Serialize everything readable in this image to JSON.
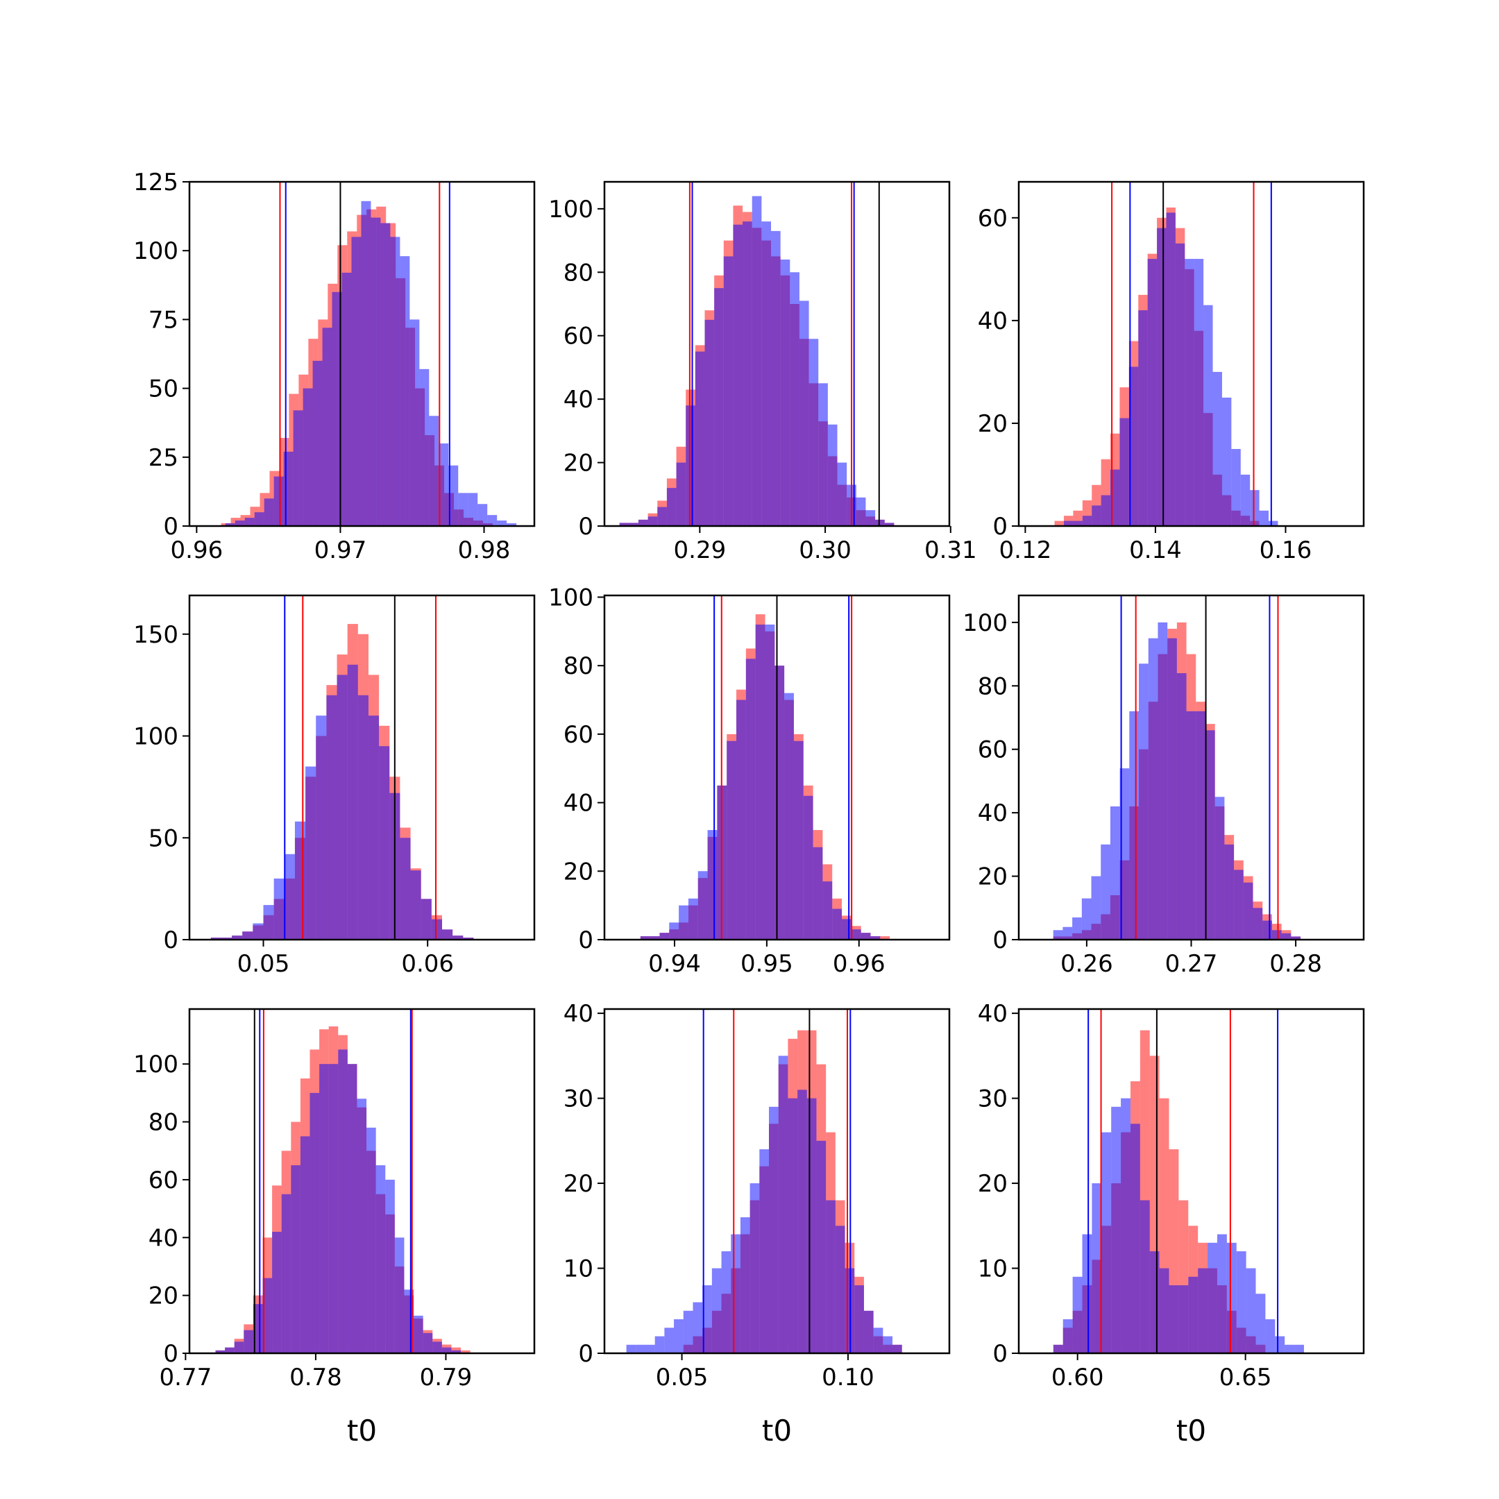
{
  "colors": {
    "red": "#ff0000",
    "blue": "#0000ff",
    "black": "#000000",
    "overlap": "#7f3fbf"
  },
  "chart_data": [
    {
      "type": "histogram",
      "xlabel": "",
      "xlim": [
        0.9595,
        0.9835
      ],
      "ylim": [
        0,
        125
      ],
      "xticks": [
        0.96,
        0.97,
        0.98
      ],
      "xtick_labels": [
        "0.96",
        "0.97",
        "0.98"
      ],
      "yticks": [
        0,
        25,
        50,
        75,
        100,
        125
      ],
      "ytick_labels": [
        "0",
        "25",
        "50",
        "75",
        "100",
        "125"
      ],
      "series": [
        {
          "color": "red",
          "x_start": 0.9617,
          "bin_width": 0.000675,
          "counts": [
            1,
            3,
            4,
            7,
            12,
            20,
            32,
            48,
            55,
            68,
            75,
            88,
            102,
            107,
            113,
            115,
            116,
            110,
            90,
            72,
            50,
            33,
            22,
            12,
            6,
            3,
            2,
            1
          ]
        },
        {
          "color": "blue",
          "x_start": 0.962,
          "bin_width": 0.000675,
          "counts": [
            1,
            2,
            3,
            5,
            10,
            18,
            27,
            42,
            50,
            60,
            72,
            85,
            92,
            105,
            118,
            112,
            110,
            105,
            98,
            75,
            57,
            40,
            30,
            22,
            12,
            12,
            8,
            4,
            2,
            1
          ]
        }
      ],
      "vlines": [
        {
          "color": "red",
          "x": 0.9658
        },
        {
          "color": "blue",
          "x": 0.9662
        },
        {
          "color": "black",
          "x": 0.97
        },
        {
          "color": "red",
          "x": 0.9769
        },
        {
          "color": "blue",
          "x": 0.9776
        }
      ]
    },
    {
      "type": "histogram",
      "xlabel": "",
      "xlim": [
        0.2824,
        0.3099
      ],
      "ylim": [
        0,
        108.5
      ],
      "xticks": [
        0.29,
        0.3,
        0.31
      ],
      "xtick_labels": [
        "0.29",
        "0.30",
        "0.31"
      ],
      "yticks": [
        0,
        20,
        40,
        60,
        80,
        100
      ],
      "ytick_labels": [
        "0",
        "20",
        "40",
        "60",
        "80",
        "100"
      ],
      "series": [
        {
          "color": "red",
          "x_start": 0.2836,
          "bin_width": 0.000755,
          "counts": [
            1,
            1,
            2,
            4,
            8,
            15,
            25,
            43,
            57,
            68,
            79,
            90,
            101,
            99,
            94,
            90,
            85,
            79,
            70,
            59,
            45,
            33,
            22,
            13,
            9,
            5,
            3,
            2,
            1
          ]
        },
        {
          "color": "blue",
          "x_start": 0.2836,
          "bin_width": 0.000755,
          "counts": [
            1,
            1,
            2,
            3,
            6,
            12,
            20,
            38,
            55,
            65,
            75,
            85,
            95,
            96,
            104,
            96,
            93,
            84,
            80,
            71,
            59,
            45,
            32,
            20,
            13,
            9,
            5,
            2,
            1
          ]
        }
      ],
      "vlines": [
        {
          "color": "red",
          "x": 0.2892
        },
        {
          "color": "blue",
          "x": 0.2894
        },
        {
          "color": "red",
          "x": 0.3021
        },
        {
          "color": "blue",
          "x": 0.3023
        },
        {
          "color": "black",
          "x": 0.3043
        }
      ]
    },
    {
      "type": "histogram",
      "xlabel": "",
      "xlim": [
        0.119,
        0.172
      ],
      "ylim": [
        0,
        67
      ],
      "xticks": [
        0.12,
        0.14,
        0.16
      ],
      "xtick_labels": [
        "0.12",
        "0.14",
        "0.16"
      ],
      "yticks": [
        0,
        20,
        40,
        60
      ],
      "ytick_labels": [
        "0",
        "20",
        "40",
        "60"
      ],
      "series": [
        {
          "color": "red",
          "x_start": 0.1245,
          "bin_width": 0.00143,
          "counts": [
            1,
            2,
            3,
            5,
            8,
            13,
            18,
            27,
            36,
            45,
            53,
            60,
            62,
            58,
            50,
            38,
            22,
            10,
            6,
            3,
            2,
            1
          ]
        },
        {
          "color": "blue",
          "x_start": 0.1245,
          "bin_width": 0.00143,
          "counts": [
            0,
            1,
            1,
            2,
            4,
            6,
            11,
            21,
            31,
            42,
            52,
            58,
            61,
            55,
            52,
            52,
            43,
            30,
            25,
            15,
            10,
            7,
            3,
            1
          ]
        }
      ],
      "vlines": [
        {
          "color": "red",
          "x": 0.1333
        },
        {
          "color": "blue",
          "x": 0.1361
        },
        {
          "color": "black",
          "x": 0.1412
        },
        {
          "color": "red",
          "x": 0.1551
        },
        {
          "color": "blue",
          "x": 0.1578
        }
      ]
    },
    {
      "type": "histogram",
      "xlabel": "",
      "xlim": [
        0.0455,
        0.0665
      ],
      "ylim": [
        0,
        169
      ],
      "xticks": [
        0.05,
        0.06
      ],
      "xtick_labels": [
        "0.05",
        "0.06"
      ],
      "yticks": [
        0,
        50,
        100,
        150
      ],
      "ytick_labels": [
        "0",
        "50",
        "100",
        "150"
      ],
      "series": [
        {
          "color": "red",
          "x_start": 0.0468,
          "bin_width": 0.00064,
          "counts": [
            1,
            1,
            2,
            4,
            7,
            12,
            20,
            30,
            50,
            80,
            100,
            125,
            140,
            155,
            150,
            130,
            105,
            80,
            55,
            35,
            20,
            12,
            5,
            2,
            1
          ]
        },
        {
          "color": "blue",
          "x_start": 0.0468,
          "bin_width": 0.00064,
          "counts": [
            1,
            1,
            2,
            4,
            8,
            17,
            30,
            42,
            58,
            85,
            110,
            120,
            130,
            135,
            120,
            110,
            95,
            72,
            50,
            34,
            20,
            10,
            5,
            2,
            1
          ]
        }
      ],
      "vlines": [
        {
          "color": "blue",
          "x": 0.0513
        },
        {
          "color": "red",
          "x": 0.0524
        },
        {
          "color": "black",
          "x": 0.058
        },
        {
          "color": "red",
          "x": 0.0605
        }
      ]
    },
    {
      "type": "histogram",
      "xlabel": "",
      "xlim": [
        0.9324,
        0.9698
      ],
      "ylim": [
        0,
        100.5
      ],
      "xticks": [
        0.94,
        0.95,
        0.96
      ],
      "xtick_labels": [
        "0.94",
        "0.95",
        "0.96"
      ],
      "yticks": [
        0,
        20,
        40,
        60,
        80,
        100
      ],
      "ytick_labels": [
        "0",
        "20",
        "40",
        "60",
        "80",
        "100"
      ],
      "series": [
        {
          "color": "red",
          "x_start": 0.9363,
          "bin_width": 0.00104,
          "counts": [
            1,
            1,
            2,
            3,
            5,
            10,
            18,
            30,
            45,
            60,
            73,
            85,
            95,
            90,
            80,
            70,
            60,
            45,
            32,
            22,
            12,
            7,
            4,
            2,
            1,
            1
          ]
        },
        {
          "color": "blue",
          "x_start": 0.9363,
          "bin_width": 0.00104,
          "counts": [
            1,
            1,
            2,
            5,
            10,
            12,
            20,
            32,
            45,
            58,
            70,
            82,
            92,
            92,
            80,
            72,
            58,
            42,
            27,
            17,
            9,
            6,
            3,
            2,
            1
          ]
        }
      ],
      "vlines": [
        {
          "color": "blue",
          "x": 0.9443
        },
        {
          "color": "red",
          "x": 0.9451
        },
        {
          "color": "black",
          "x": 0.9511
        },
        {
          "color": "blue",
          "x": 0.9589
        },
        {
          "color": "red",
          "x": 0.9592
        }
      ]
    },
    {
      "type": "histogram",
      "xlabel": "",
      "xlim": [
        0.2535,
        0.2865
      ],
      "ylim": [
        0,
        108.5
      ],
      "xticks": [
        0.26,
        0.27,
        0.28
      ],
      "xtick_labels": [
        "0.26",
        "0.27",
        "0.28"
      ],
      "yticks": [
        0,
        20,
        40,
        60,
        80,
        100
      ],
      "ytick_labels": [
        "0",
        "20",
        "40",
        "60",
        "80",
        "100"
      ],
      "series": [
        {
          "color": "red",
          "x_start": 0.2568,
          "bin_width": 0.00091,
          "counts": [
            1,
            1,
            2,
            3,
            5,
            8,
            14,
            25,
            42,
            60,
            75,
            90,
            98,
            100,
            90,
            75,
            68,
            42,
            33,
            25,
            20,
            12,
            8,
            5,
            3,
            1
          ]
        },
        {
          "color": "blue",
          "x_start": 0.2568,
          "bin_width": 0.00091,
          "counts": [
            3,
            4,
            7,
            13,
            20,
            30,
            42,
            54,
            72,
            87,
            95,
            100,
            95,
            84,
            72,
            72,
            66,
            45,
            30,
            22,
            18,
            10,
            6,
            3,
            2,
            1
          ]
        }
      ],
      "vlines": [
        {
          "color": "blue",
          "x": 0.2633
        },
        {
          "color": "red",
          "x": 0.2647
        },
        {
          "color": "black",
          "x": 0.2714
        },
        {
          "color": "blue",
          "x": 0.2775
        },
        {
          "color": "red",
          "x": 0.2783
        }
      ]
    },
    {
      "type": "histogram",
      "xlabel": "t0",
      "xlim": [
        0.7703,
        0.7968
      ],
      "ylim": [
        0,
        119
      ],
      "xticks": [
        0.77,
        0.78,
        0.79
      ],
      "xtick_labels": [
        "0.77",
        "0.78",
        "0.79"
      ],
      "yticks": [
        0,
        20,
        40,
        60,
        80,
        100
      ],
      "ytick_labels": [
        "0",
        "20",
        "40",
        "60",
        "80",
        "100"
      ],
      "series": [
        {
          "color": "red",
          "x_start": 0.7723,
          "bin_width": 0.000725,
          "counts": [
            1,
            2,
            5,
            10,
            20,
            40,
            58,
            70,
            80,
            95,
            105,
            112,
            113,
            110,
            100,
            85,
            70,
            55,
            48,
            30,
            20,
            12,
            8,
            5,
            3,
            2,
            1
          ]
        },
        {
          "color": "blue",
          "x_start": 0.7723,
          "bin_width": 0.000725,
          "counts": [
            1,
            2,
            4,
            8,
            17,
            26,
            42,
            55,
            65,
            75,
            90,
            100,
            100,
            105,
            100,
            88,
            78,
            65,
            60,
            40,
            22,
            13,
            7,
            4,
            2,
            1
          ]
        }
      ],
      "vlines": [
        {
          "color": "black",
          "x": 0.7753
        },
        {
          "color": "blue",
          "x": 0.7757
        },
        {
          "color": "red",
          "x": 0.776
        },
        {
          "color": "blue",
          "x": 0.7873
        },
        {
          "color": "red",
          "x": 0.7874
        }
      ]
    },
    {
      "type": "histogram",
      "xlabel": "t0",
      "xlim": [
        0.0267,
        0.1305
      ],
      "ylim": [
        0,
        40.5
      ],
      "xticks": [
        0.05,
        0.1
      ],
      "xtick_labels": [
        "0.05",
        "0.10"
      ],
      "yticks": [
        0,
        10,
        20,
        30,
        40
      ],
      "ytick_labels": [
        "0",
        "10",
        "20",
        "30",
        "40"
      ],
      "series": [
        {
          "color": "red",
          "x_start": 0.0333,
          "bin_width": 0.00286,
          "counts": [
            0,
            0,
            0,
            0,
            0,
            0,
            1,
            2,
            3,
            5,
            7,
            10,
            14,
            18,
            22,
            27,
            34,
            37,
            38,
            38,
            34,
            26,
            18,
            13,
            9,
            5,
            2,
            1,
            1
          ]
        },
        {
          "color": "blue",
          "x_start": 0.0333,
          "bin_width": 0.00286,
          "counts": [
            1,
            1,
            1,
            2,
            3,
            4,
            5,
            6,
            8,
            10,
            12,
            14,
            16,
            20,
            24,
            29,
            35,
            30,
            31,
            30,
            25,
            18,
            15,
            10,
            8,
            5,
            3,
            2,
            1
          ]
        }
      ],
      "vlines": [
        {
          "color": "blue",
          "x": 0.0565
        },
        {
          "color": "red",
          "x": 0.0656
        },
        {
          "color": "black",
          "x": 0.0884
        },
        {
          "color": "red",
          "x": 0.0998
        },
        {
          "color": "blue",
          "x": 0.1007
        }
      ]
    },
    {
      "type": "histogram",
      "xlabel": "t0",
      "xlim": [
        0.5825,
        0.6852
      ],
      "ylim": [
        0,
        40.5
      ],
      "xticks": [
        0.6,
        0.65
      ],
      "xtick_labels": [
        "0.60",
        "0.65"
      ],
      "yticks": [
        0,
        10,
        20,
        30,
        40
      ],
      "ytick_labels": [
        "0",
        "10",
        "20",
        "30",
        "40"
      ],
      "series": [
        {
          "color": "red",
          "x_start": 0.5928,
          "bin_width": 0.00287,
          "counts": [
            1,
            3,
            5,
            8,
            11,
            15,
            20,
            26,
            32,
            38,
            35,
            30,
            24,
            18,
            15,
            13,
            10,
            8,
            5,
            3,
            2,
            1
          ]
        },
        {
          "color": "blue",
          "x_start": 0.5928,
          "bin_width": 0.00287,
          "counts": [
            1,
            4,
            9,
            14,
            20,
            26,
            29,
            30,
            27,
            18,
            12,
            10,
            8,
            8,
            9,
            10,
            13,
            14,
            13,
            12,
            10,
            7,
            4,
            2,
            1,
            1
          ]
        }
      ],
      "vlines": [
        {
          "color": "blue",
          "x": 0.6032
        },
        {
          "color": "red",
          "x": 0.607
        },
        {
          "color": "black",
          "x": 0.6236
        },
        {
          "color": "red",
          "x": 0.6455
        },
        {
          "color": "blue",
          "x": 0.6596
        }
      ]
    }
  ]
}
